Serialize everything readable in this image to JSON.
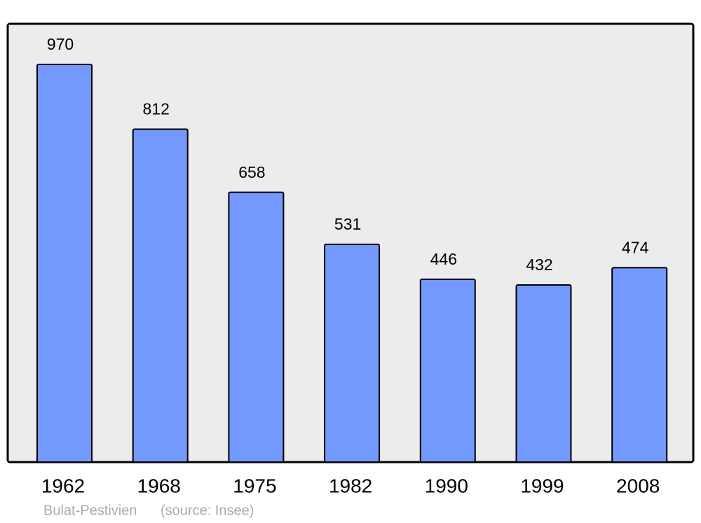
{
  "chart_data": {
    "type": "bar",
    "title": "Bulat-Pestivien",
    "source": "(source: Insee)",
    "categories": [
      "1962",
      "1968",
      "1975",
      "1982",
      "1990",
      "1999",
      "2008"
    ],
    "values": [
      970,
      812,
      658,
      531,
      446,
      432,
      474
    ],
    "color": "#7399ff",
    "background": "#ececec",
    "ylim": [
      0,
      1069
    ]
  }
}
